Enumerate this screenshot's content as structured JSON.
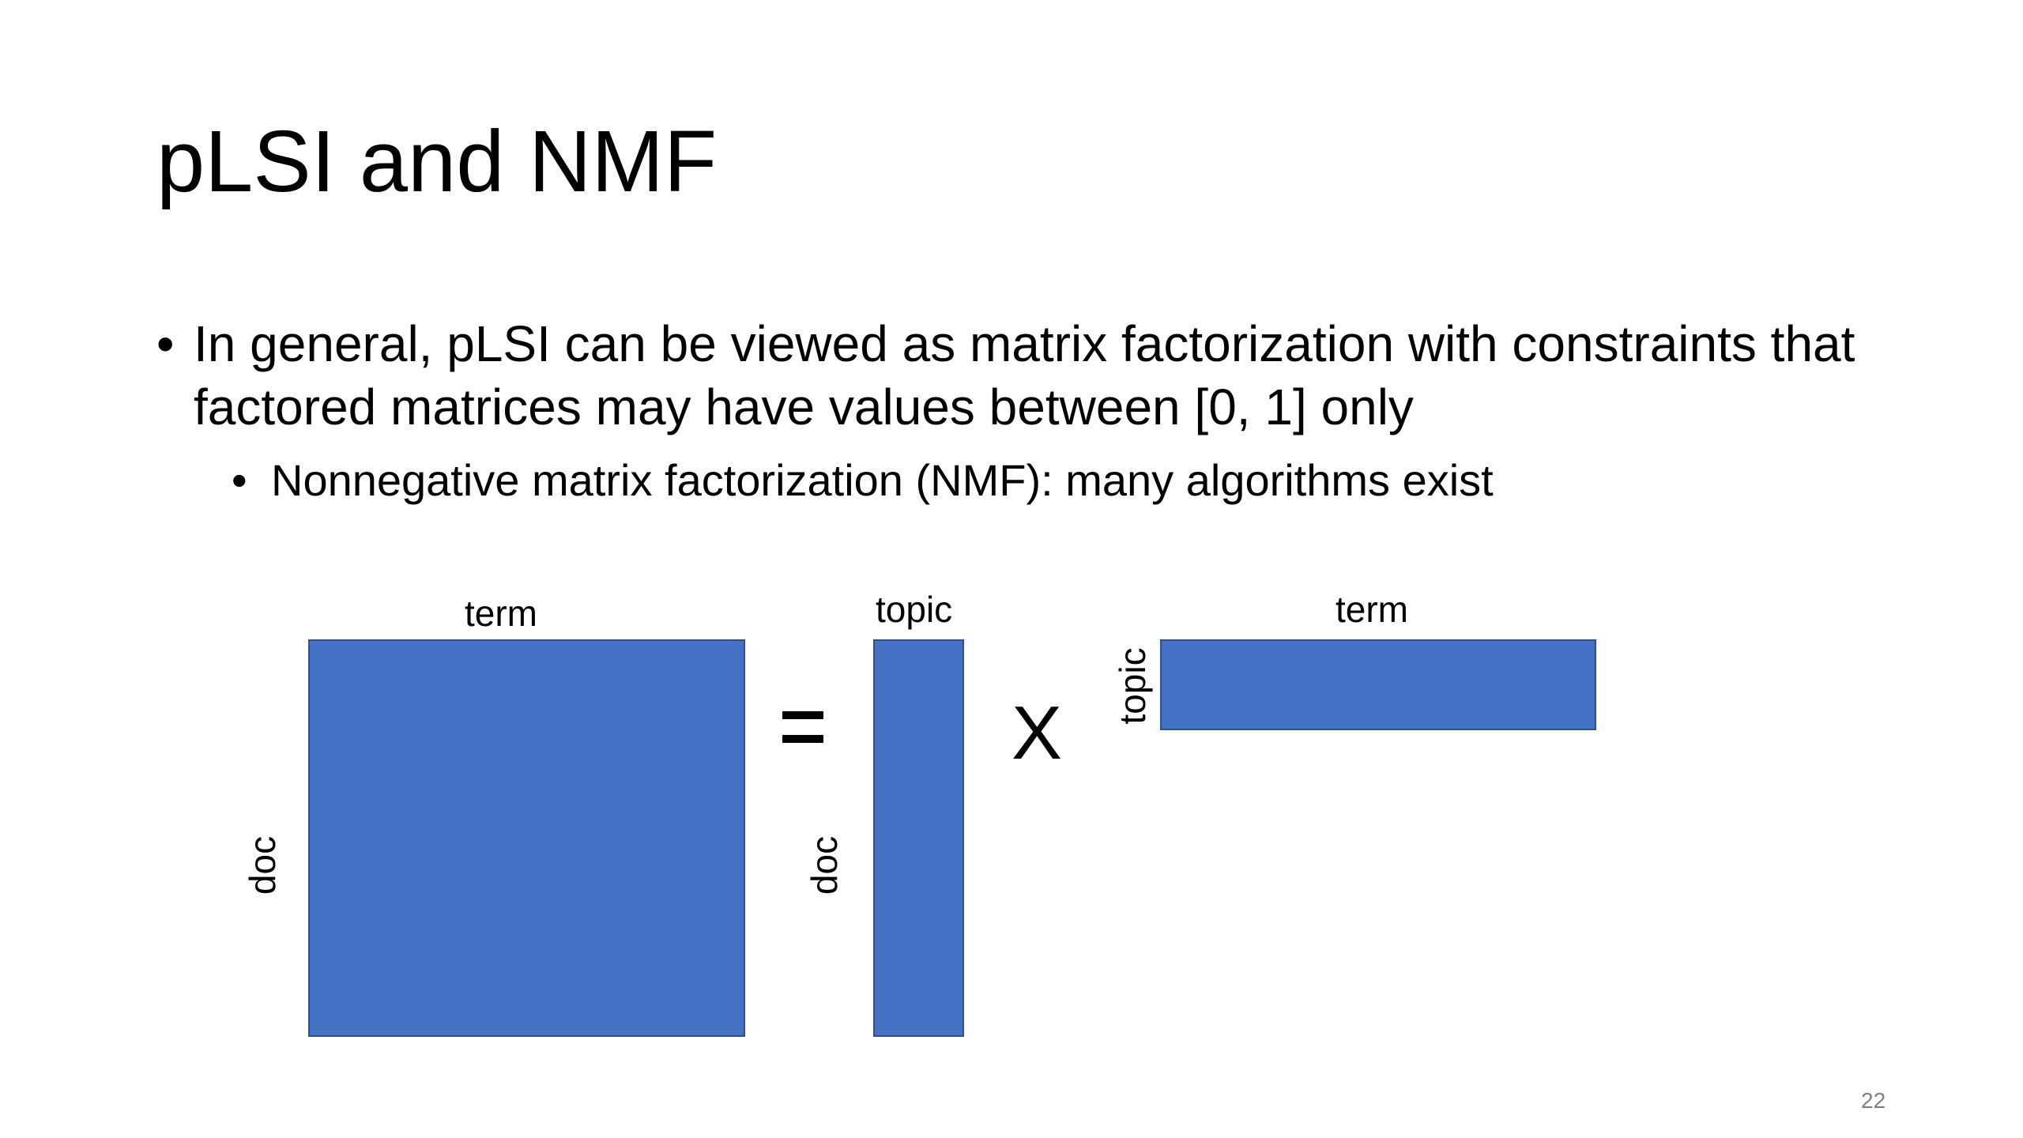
{
  "slide": {
    "title": "pLSI and NMF",
    "bullets": [
      {
        "marker": "•",
        "text": "In general, pLSI can be viewed as matrix factorization with constraints that factored matrices may have values between [0, 1] only"
      },
      {
        "marker": "•",
        "text": "Nonnegative matrix factorization (NMF): many algorithms exist"
      }
    ],
    "page_number": "22"
  },
  "diagram": {
    "matrix_color": "#4472c4",
    "matrix_border_color": "#2f528f",
    "operators": {
      "equals": "=",
      "times": "X"
    },
    "matrices": [
      {
        "name": "document-term-matrix",
        "top_label": "term",
        "side_label": "doc"
      },
      {
        "name": "document-topic-matrix",
        "top_label": "topic",
        "side_label": "doc"
      },
      {
        "name": "topic-term-matrix",
        "top_label": "term",
        "side_label": "topic"
      }
    ]
  }
}
